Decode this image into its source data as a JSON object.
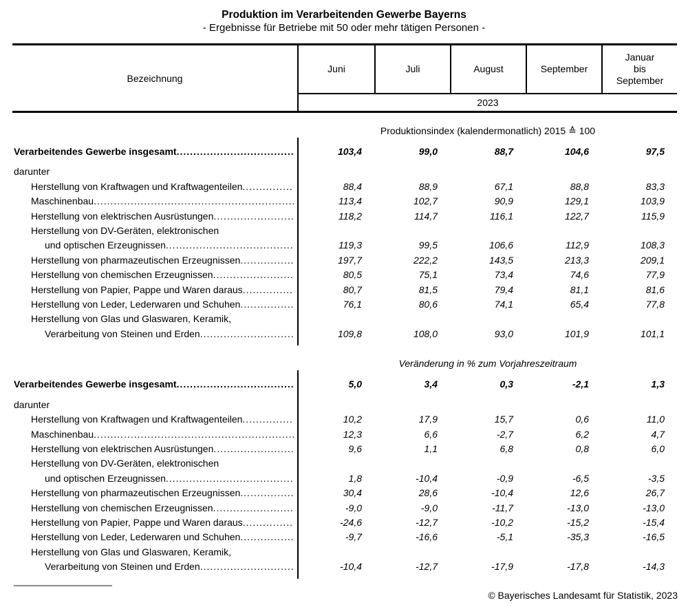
{
  "title": "Produktion im Verarbeitenden Gewerbe Bayerns",
  "subtitle": "- Ergebnisse für Betriebe mit 50 oder mehr tätigen Personen -",
  "table": {
    "label_column_header": "Bezeichnung",
    "columns": [
      "Juni",
      "Juli",
      "August",
      "September",
      "Januar\nbis\nSeptember"
    ],
    "year": "2023"
  },
  "sections": [
    {
      "caption": "Produktionsindex (kalendermonatlich) 2015 ≙ 100",
      "total_row": {
        "label": "Verarbeitendes Gewerbe insgesamt",
        "values": [
          "103,4",
          "99,0",
          "88,7",
          "104,6",
          "97,5"
        ]
      },
      "group_label": "darunter",
      "rows": [
        {
          "lines": [
            "Herstellung von Kraftwagen und Kraftwagenteilen"
          ],
          "values": [
            "88,4",
            "88,9",
            "67,1",
            "88,8",
            "83,3"
          ]
        },
        {
          "lines": [
            "Maschinenbau"
          ],
          "values": [
            "113,4",
            "102,7",
            "90,9",
            "129,1",
            "103,9"
          ]
        },
        {
          "lines": [
            "Herstellung von elektrischen Ausrüstungen"
          ],
          "values": [
            "118,2",
            "114,7",
            "116,1",
            "122,7",
            "115,9"
          ]
        },
        {
          "lines": [
            "Herstellung von DV-Geräten, elektronischen",
            "und optischen Erzeugnissen"
          ],
          "values": [
            "119,3",
            "99,5",
            "106,6",
            "112,9",
            "108,3"
          ]
        },
        {
          "lines": [
            "Herstellung von pharmazeutischen Erzeugnissen"
          ],
          "values": [
            "197,7",
            "222,2",
            "143,5",
            "213,3",
            "209,1"
          ]
        },
        {
          "lines": [
            "Herstellung von chemischen Erzeugnissen"
          ],
          "values": [
            "80,5",
            "75,1",
            "73,4",
            "74,6",
            "77,9"
          ]
        },
        {
          "lines": [
            "Herstellung von Papier, Pappe und Waren daraus"
          ],
          "values": [
            "80,7",
            "81,5",
            "79,4",
            "81,1",
            "81,6"
          ]
        },
        {
          "lines": [
            "Herstellung von Leder, Lederwaren und Schuhen"
          ],
          "values": [
            "76,1",
            "80,6",
            "74,1",
            "65,4",
            "77,8"
          ]
        },
        {
          "lines": [
            "Herstellung von Glas und Glaswaren, Keramik,",
            "Verarbeitung von Steinen und Erden"
          ],
          "values": [
            "109,8",
            "108,0",
            "93,0",
            "101,9",
            "101,1"
          ]
        }
      ]
    },
    {
      "caption": "Veränderung in % zum Vorjahreszeitraum",
      "total_row": {
        "label": "Verarbeitendes Gewerbe insgesamt",
        "values": [
          "5,0",
          "3,4",
          "0,3",
          "-2,1",
          "1,3"
        ]
      },
      "group_label": "darunter",
      "rows": [
        {
          "lines": [
            "Herstellung von Kraftwagen und Kraftwagenteilen"
          ],
          "values": [
            "10,2",
            "17,9",
            "15,7",
            "0,6",
            "11,0"
          ]
        },
        {
          "lines": [
            "Maschinenbau"
          ],
          "values": [
            "12,3",
            "6,6",
            "-2,7",
            "6,2",
            "4,7"
          ]
        },
        {
          "lines": [
            "Herstellung von elektrischen Ausrüstungen"
          ],
          "values": [
            "9,6",
            "1,1",
            "6,8",
            "0,8",
            "6,0"
          ]
        },
        {
          "lines": [
            "Herstellung von DV-Geräten, elektronischen",
            "und optischen Erzeugnissen"
          ],
          "values": [
            "1,8",
            "-10,4",
            "-0,9",
            "-6,5",
            "-3,5"
          ]
        },
        {
          "lines": [
            "Herstellung von pharmazeutischen Erzeugnissen"
          ],
          "values": [
            "30,4",
            "28,6",
            "-10,4",
            "12,6",
            "26,7"
          ]
        },
        {
          "lines": [
            "Herstellung von chemischen Erzeugnissen"
          ],
          "values": [
            "-9,0",
            "-9,0",
            "-11,7",
            "-13,0",
            "-13,0"
          ]
        },
        {
          "lines": [
            "Herstellung von Papier, Pappe und Waren daraus"
          ],
          "values": [
            "-24,6",
            "-12,7",
            "-10,2",
            "-15,2",
            "-15,4"
          ]
        },
        {
          "lines": [
            "Herstellung von Leder, Lederwaren und Schuhen"
          ],
          "values": [
            "-9,7",
            "-16,6",
            "-5,1",
            "-35,3",
            "-16,5"
          ]
        },
        {
          "lines": [
            "Herstellung von Glas und Glaswaren, Keramik,",
            "Verarbeitung von Steinen und Erden"
          ],
          "values": [
            "-10,4",
            "-12,7",
            "-17,9",
            "-17,8",
            "-14,3"
          ]
        }
      ]
    }
  ],
  "footer": {
    "copyright": "© Bayerisches Landesamt für Statistik, 2023"
  }
}
